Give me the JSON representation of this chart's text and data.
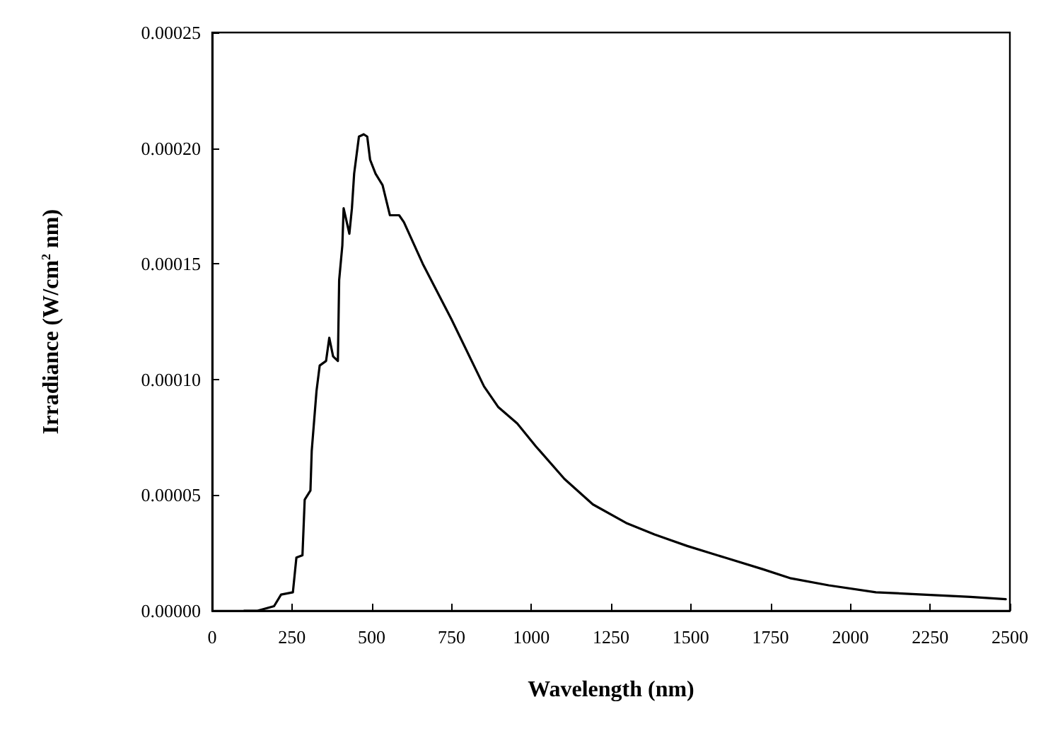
{
  "chart_data": {
    "type": "line",
    "xlabel": "Wavelength (nm)",
    "ylabel": "Irradiance (W/cm$^{2}$ nm)",
    "x": [
      100,
      142,
      194,
      216,
      253,
      264,
      283,
      290,
      308,
      312,
      327,
      337,
      357,
      367,
      379,
      394,
      398,
      408,
      412,
      430,
      438,
      445,
      460,
      475,
      486,
      495,
      512,
      534,
      557,
      586,
      601,
      660,
      750,
      852,
      897,
      956,
      1015,
      1104,
      1193,
      1297,
      1386,
      1489,
      1607,
      1725,
      1814,
      1932,
      2080,
      2228,
      2376,
      2487
    ],
    "series": [
      {
        "color": "#000000",
        "values": [
          0,
          0,
          2e-06,
          7e-06,
          8e-06,
          2.3e-05,
          2.4e-05,
          4.8e-05,
          5.2e-05,
          6.9e-05,
          9.5e-05,
          0.000106,
          0.000108,
          0.000118,
          0.00011,
          0.000108,
          0.000143,
          0.000158,
          0.000174,
          0.000163,
          0.000174,
          0.000189,
          0.000205,
          0.000206,
          0.000205,
          0.000195,
          0.000189,
          0.000184,
          0.000171,
          0.000171,
          0.000168,
          0.00015,
          0.000126,
          9.7e-05,
          8.8e-05,
          8.1e-05,
          7.1e-05,
          5.7e-05,
          4.6e-05,
          3.8e-05,
          3.3e-05,
          2.8e-05,
          2.3e-05,
          1.8e-05,
          1.4e-05,
          1.1e-05,
          8e-06,
          7e-06,
          6e-06,
          5e-06
        ]
      }
    ],
    "xlim": [
      0,
      2500
    ],
    "xticks": [
      0,
      250,
      500,
      750,
      1000,
      1250,
      1500,
      1750,
      2000,
      2250,
      2500
    ],
    "ylim": [
      0,
      0.00025
    ],
    "yticks": [
      {
        "value": 0,
        "label": "0.00000"
      },
      {
        "value": 5e-05,
        "label": "0.00005"
      },
      {
        "value": 0.0001,
        "label": "0.00010"
      },
      {
        "value": 0.00015,
        "label": "0.00015"
      },
      {
        "value": 0.0002,
        "label": "0.00020"
      },
      {
        "value": 0.00025,
        "label": "0.00025"
      }
    ],
    "grid": false,
    "marker": "none",
    "line_style": "solid"
  }
}
